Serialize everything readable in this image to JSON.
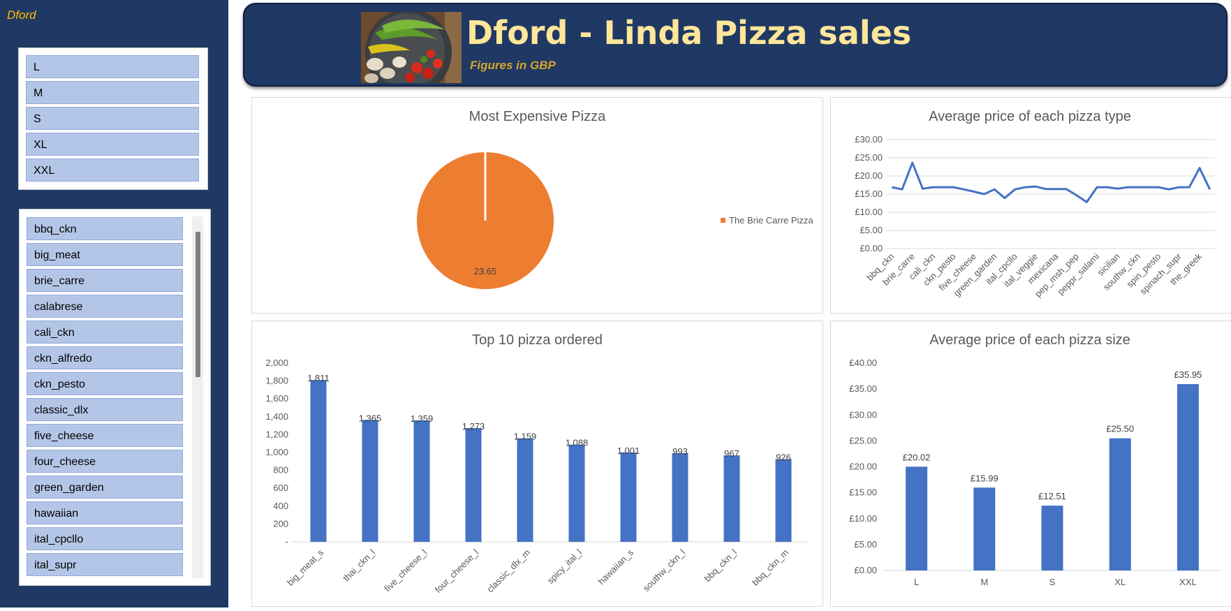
{
  "brand": "Dford",
  "header": {
    "title": "Dford - Linda Pizza sales",
    "subtitle": "Figures in GBP"
  },
  "size_slicer": {
    "items": [
      "L",
      "M",
      "S",
      "XL",
      "XXL"
    ]
  },
  "name_slicer": {
    "items": [
      "bbq_ckn",
      "big_meat",
      "brie_carre",
      "calabrese",
      "cali_ckn",
      "ckn_alfredo",
      "ckn_pesto",
      "classic_dlx",
      "five_cheese",
      "four_cheese",
      "green_garden",
      "hawaiian",
      "ital_cpcllo",
      "ital_supr"
    ]
  },
  "colors": {
    "navy": "#1f3864",
    "accent_gold": "#ffe699",
    "slicer_item": "#b4c6e7",
    "bar_blue": "#4472c4",
    "pie_orange": "#ed7d31"
  },
  "chart_data": [
    {
      "id": "most_expensive",
      "type": "pie",
      "title": "Most Expensive Pizza",
      "labels": [
        "The Brie Carre Pizza"
      ],
      "values": [
        23.65
      ],
      "data_labels": [
        "23.65"
      ],
      "legend": "right"
    },
    {
      "id": "avg_price_type",
      "type": "line",
      "title": "Average price of each pizza type",
      "x_tick_labels": [
        "bbq_ckn",
        "brie_carre",
        "cali_ckn",
        "ckn_pesto",
        "five_cheese",
        "green_garden",
        "ital_cpcllo",
        "ital_veggie",
        "mexicana",
        "pep_msh_pep",
        "peppr_salami",
        "sicilian",
        "southw_ckn",
        "spin_pesto",
        "spinach_supr",
        "the_greek"
      ],
      "values": [
        16.9,
        16.3,
        23.65,
        16.5,
        16.9,
        16.9,
        16.9,
        16.3,
        15.7,
        15.0,
        16.3,
        13.9,
        16.3,
        16.9,
        17.1,
        16.4,
        16.4,
        16.4,
        14.7,
        12.8,
        16.9,
        16.9,
        16.5,
        16.9,
        16.9,
        16.9,
        16.9,
        16.3,
        16.9,
        16.9,
        22.2,
        16.3
      ],
      "y_tick_labels": [
        "£0.00",
        "£5.00",
        "£10.00",
        "£15.00",
        "£20.00",
        "£25.00",
        "£30.00"
      ],
      "ylim": [
        0,
        30
      ],
      "grid": true
    },
    {
      "id": "top10",
      "type": "bar",
      "title": "Top 10 pizza ordered",
      "categories": [
        "big_meat_s",
        "thai_ckn_l",
        "five_cheese_l",
        "four_cheese_l",
        "classic_dlx_m",
        "spicy_ital_l",
        "hawaiian_s",
        "southw_ckn_l",
        "bbq_ckn_l",
        "bbq_ckn_m"
      ],
      "values": [
        1811,
        1365,
        1359,
        1273,
        1159,
        1088,
        1001,
        993,
        967,
        926
      ],
      "data_labels": [
        "1,811",
        "1,365",
        "1,359",
        "1,273",
        "1,159",
        "1,088",
        "1,001",
        "993",
        "967",
        "926"
      ],
      "y_tick_labels": [
        "-",
        "200",
        "400",
        "600",
        "800",
        "1,000",
        "1,200",
        "1,400",
        "1,600",
        "1,800",
        "2,000"
      ],
      "ylim": [
        0,
        2000
      ]
    },
    {
      "id": "avg_price_size",
      "type": "bar",
      "title": "Average price of each pizza size",
      "categories": [
        "L",
        "M",
        "S",
        "XL",
        "XXL"
      ],
      "values": [
        20.02,
        15.99,
        12.51,
        25.5,
        35.95
      ],
      "data_labels": [
        "£20.02",
        "£15.99",
        "£12.51",
        "£25.50",
        "£35.95"
      ],
      "y_tick_labels": [
        "£0.00",
        "£5.00",
        "£10.00",
        "£15.00",
        "£20.00",
        "£25.00",
        "£30.00",
        "£35.00",
        "£40.00"
      ],
      "ylim": [
        0,
        40
      ]
    }
  ]
}
